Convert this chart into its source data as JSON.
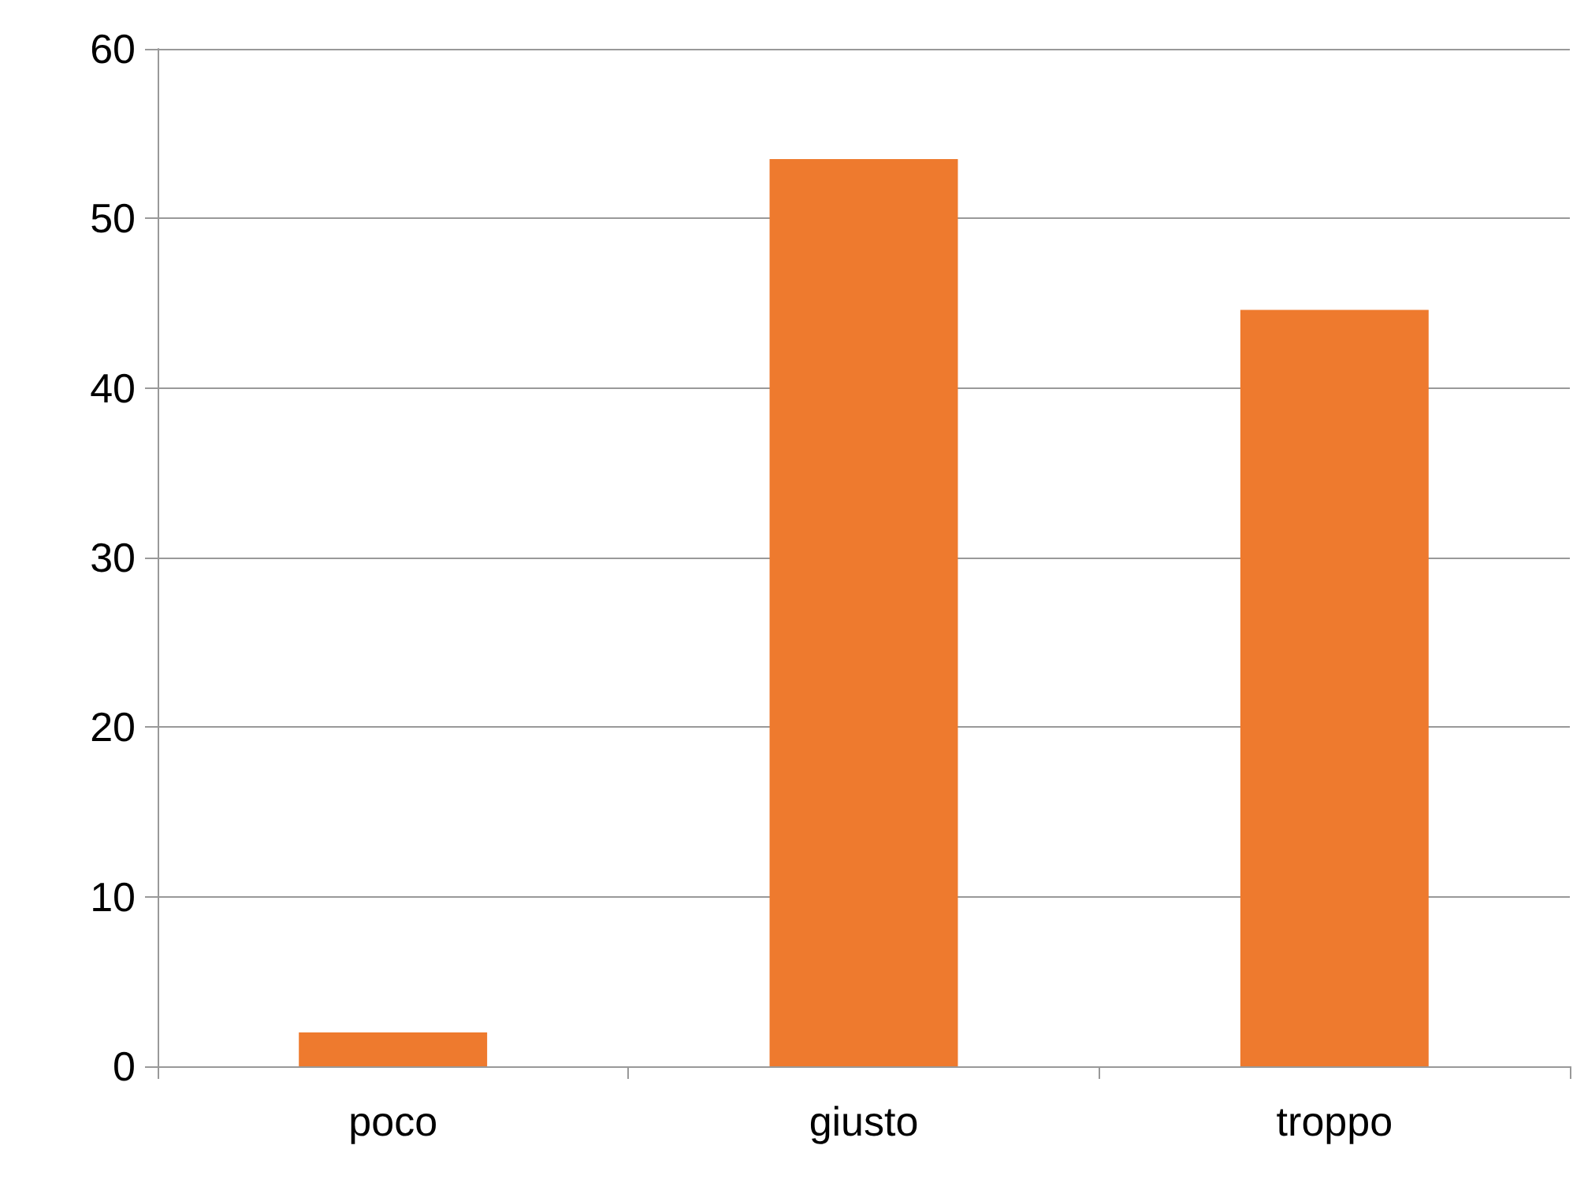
{
  "chart_data": {
    "type": "bar",
    "categories": [
      "poco",
      "giusto",
      "troppo"
    ],
    "values": [
      2,
      53.5,
      44.6
    ],
    "color": "#ee7a2e",
    "ylim": [
      0,
      60
    ],
    "yticks": [
      0,
      10,
      20,
      30,
      40,
      50,
      60
    ],
    "grid": "y"
  }
}
